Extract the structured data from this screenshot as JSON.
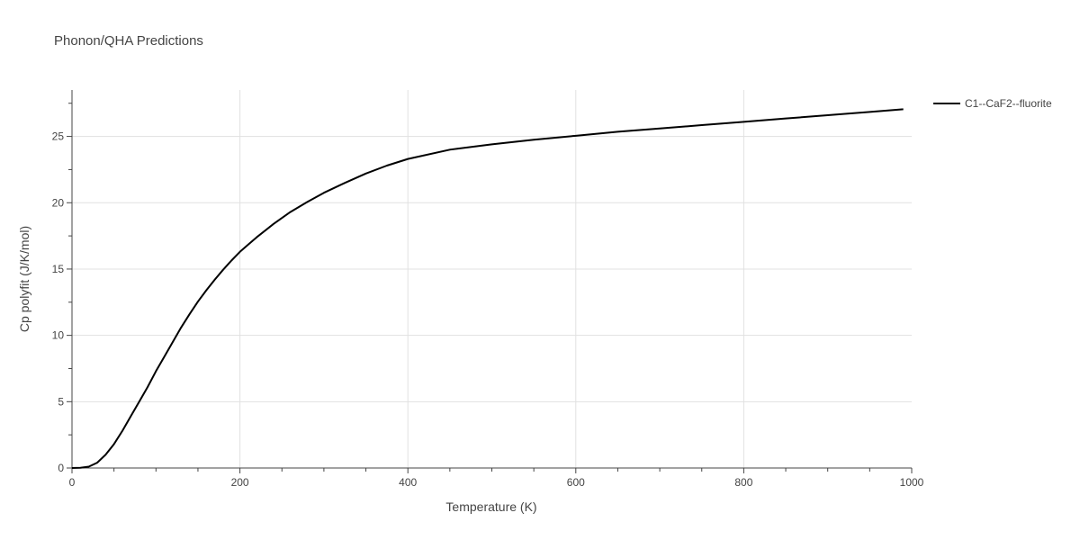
{
  "chart_data": {
    "type": "line",
    "title": "Phonon/QHA Predictions",
    "xlabel": "Temperature (K)",
    "ylabel": "Cp polyfit (J/K/mol)",
    "xlim": [
      0,
      1000
    ],
    "ylim": [
      0,
      28.5
    ],
    "x_ticks": [
      0,
      200,
      400,
      600,
      800,
      1000
    ],
    "y_ticks": [
      0,
      5,
      10,
      15,
      20,
      25
    ],
    "x_tick_labels": [
      "0",
      "200",
      "400",
      "600",
      "800",
      "1000"
    ],
    "y_tick_labels": [
      "0",
      "5",
      "10",
      "15",
      "20",
      "25"
    ],
    "grid": true,
    "legend_position": "top-right, outside plot",
    "series": [
      {
        "name": "C1--CaF2--fluorite",
        "color": "#000000",
        "x": [
          0,
          10,
          20,
          30,
          40,
          50,
          60,
          70,
          80,
          90,
          100,
          110,
          120,
          130,
          140,
          150,
          160,
          170,
          180,
          190,
          200,
          210,
          220,
          240,
          260,
          280,
          300,
          325,
          350,
          375,
          400,
          450,
          500,
          550,
          600,
          650,
          700,
          750,
          800,
          850,
          900,
          950,
          990
        ],
        "y": [
          0,
          0.02,
          0.1,
          0.4,
          1.0,
          1.8,
          2.8,
          3.9,
          5.0,
          6.1,
          7.3,
          8.4,
          9.5,
          10.6,
          11.6,
          12.55,
          13.4,
          14.2,
          14.95,
          15.65,
          16.3,
          16.85,
          17.4,
          18.4,
          19.3,
          20.05,
          20.75,
          21.5,
          22.2,
          22.8,
          23.3,
          24.0,
          24.4,
          24.75,
          25.05,
          25.35,
          25.6,
          25.85,
          26.1,
          26.35,
          26.6,
          26.85,
          27.05
        ]
      }
    ]
  }
}
